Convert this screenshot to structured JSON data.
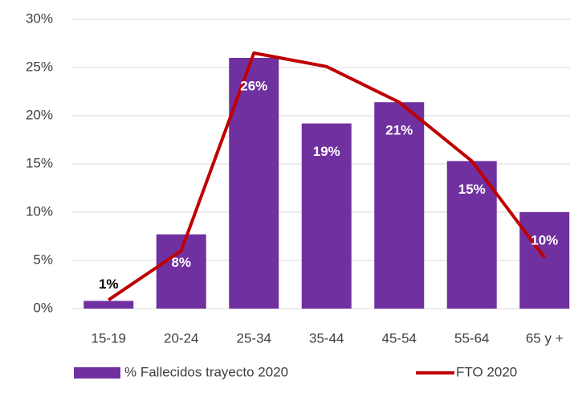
{
  "chart_data": {
    "type": "bar",
    "categories": [
      "15-19",
      "20-24",
      "25-34",
      "35-44",
      "45-54",
      "55-64",
      "65 y +"
    ],
    "series": [
      {
        "name": "% Fallecidos trayecto 2020",
        "type": "bar",
        "color": "#7030a0",
        "values": [
          0.8,
          7.7,
          26,
          19.2,
          21.4,
          15.3,
          10
        ],
        "value_labels": [
          "1%",
          "8%",
          "26%",
          "19%",
          "21%",
          "15%",
          "10%"
        ]
      },
      {
        "name": "FTO 2020",
        "type": "line",
        "color": "#c00000",
        "values": [
          0.9,
          6,
          26.5,
          25.1,
          21.4,
          15.3,
          5.3
        ]
      }
    ],
    "ylim": [
      0,
      30
    ],
    "yticks": [
      {
        "value": 0,
        "label": "0%"
      },
      {
        "value": 5,
        "label": "5%"
      },
      {
        "value": 10,
        "label": "10%"
      },
      {
        "value": 15,
        "label": "15%"
      },
      {
        "value": 20,
        "label": "20%"
      },
      {
        "value": 25,
        "label": "25%"
      },
      {
        "value": 30,
        "label": "30%"
      }
    ],
    "grid": true
  }
}
